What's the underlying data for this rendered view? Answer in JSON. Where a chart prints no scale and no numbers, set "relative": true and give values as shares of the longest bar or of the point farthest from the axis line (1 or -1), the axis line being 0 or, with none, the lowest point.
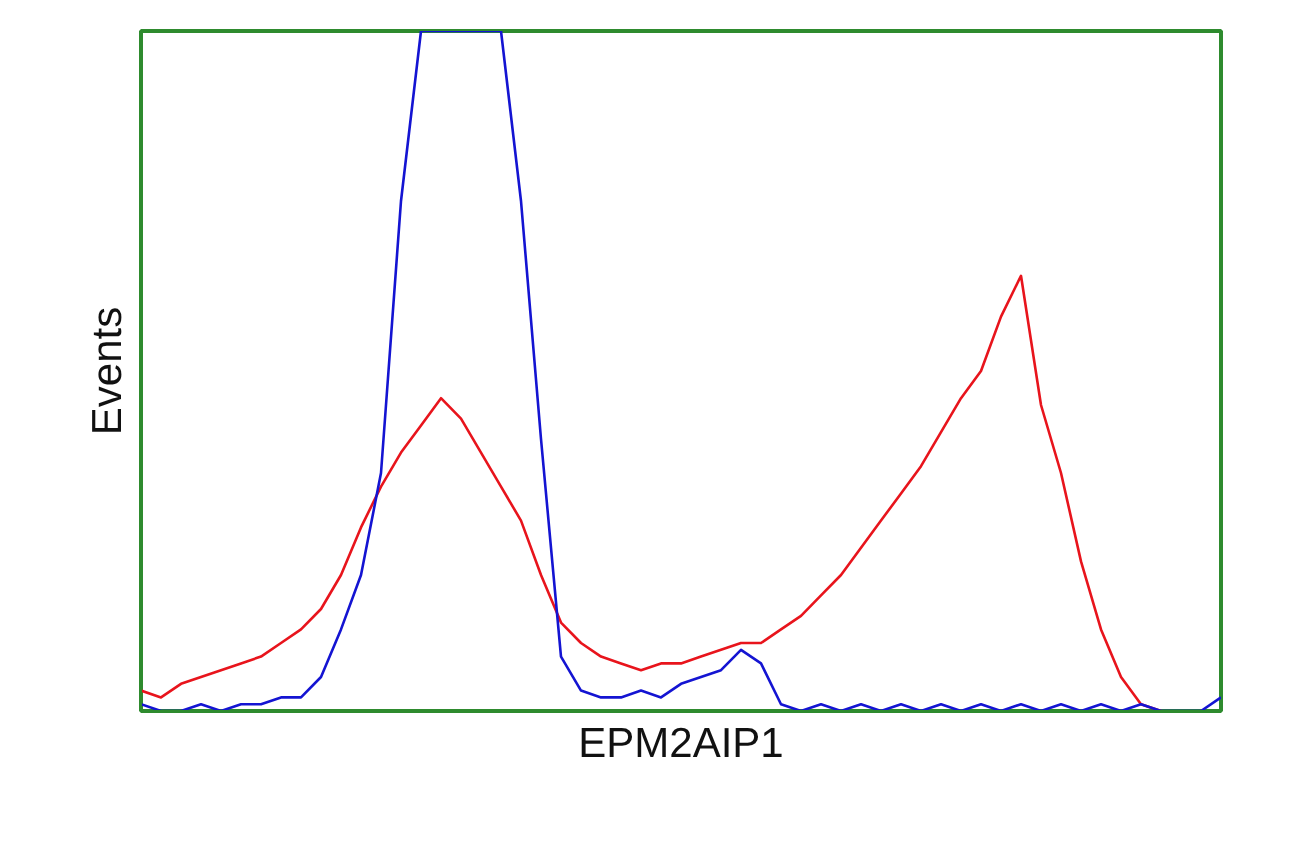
{
  "chart_data": {
    "type": "line",
    "relative": true,
    "xlabel": "EPM2AIP1",
    "ylabel": "Events",
    "categories": [
      null,
      null,
      null,
      null,
      null,
      null,
      null,
      null,
      null,
      null,
      null,
      null,
      null,
      null,
      null,
      null,
      null,
      null,
      null,
      null,
      null,
      null,
      null,
      null,
      null,
      null,
      null,
      null,
      null,
      null,
      null,
      null,
      null,
      null,
      null,
      null,
      null,
      null,
      null,
      null,
      null,
      null,
      null,
      null,
      null,
      null,
      null,
      null,
      null,
      null,
      null,
      null,
      null,
      null,
      null
    ],
    "series": [
      {
        "color": "#e8141c",
        "values": [
          0.03,
          0.02,
          0.04,
          0.05,
          0.06,
          0.07,
          0.08,
          0.1,
          0.12,
          0.15,
          0.2,
          0.27,
          0.33,
          0.38,
          0.42,
          0.46,
          0.43,
          0.38,
          0.33,
          0.28,
          0.2,
          0.13,
          0.1,
          0.08,
          0.07,
          0.06,
          0.07,
          0.07,
          0.08,
          0.09,
          0.1,
          0.1,
          0.12,
          0.14,
          0.17,
          0.2,
          0.24,
          0.28,
          0.32,
          0.36,
          0.41,
          0.46,
          0.5,
          0.58,
          0.64,
          0.45,
          0.35,
          0.22,
          0.12,
          0.05,
          0.01,
          0,
          null,
          null,
          null
        ]
      },
      {
        "color": "#1414d2",
        "values": [
          0.01,
          0,
          0,
          0.01,
          0,
          0.01,
          0.01,
          0.02,
          0.02,
          0.05,
          0.12,
          0.2,
          0.35,
          0.75,
          1,
          1,
          1,
          1,
          1,
          0.75,
          0.4,
          0.08,
          0.03,
          0.02,
          0.02,
          0.03,
          0.02,
          0.04,
          0.05,
          0.06,
          0.09,
          0.07,
          0.01,
          0,
          0.01,
          0,
          0.01,
          0,
          0.01,
          0,
          0.01,
          0,
          0.01,
          0,
          0.01,
          0,
          0.01,
          0,
          0.01,
          0,
          0.01,
          0,
          0,
          0,
          0.02
        ]
      }
    ]
  }
}
